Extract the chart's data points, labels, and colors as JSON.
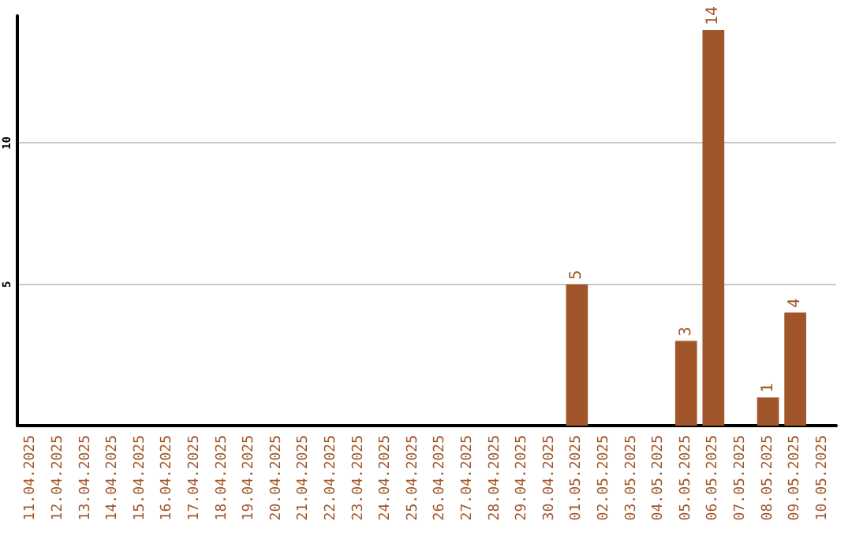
{
  "chart_data": {
    "type": "bar",
    "categories": [
      "11.04.2025",
      "12.04.2025",
      "13.04.2025",
      "14.04.2025",
      "15.04.2025",
      "16.04.2025",
      "17.04.2025",
      "18.04.2025",
      "19.04.2025",
      "20.04.2025",
      "21.04.2025",
      "22.04.2025",
      "23.04.2025",
      "24.04.2025",
      "25.04.2025",
      "26.04.2025",
      "27.04.2025",
      "28.04.2025",
      "29.04.2025",
      "30.04.2025",
      "01.05.2025",
      "02.05.2025",
      "03.05.2025",
      "04.05.2025",
      "05.05.2025",
      "06.05.2025",
      "07.05.2025",
      "08.05.2025",
      "09.05.2025",
      "10.05.2025"
    ],
    "values": [
      0,
      0,
      0,
      0,
      0,
      0,
      0,
      0,
      0,
      0,
      0,
      0,
      0,
      0,
      0,
      0,
      0,
      0,
      0,
      0,
      5,
      0,
      0,
      0,
      3,
      14,
      0,
      1,
      4,
      0
    ],
    "value_labels": [
      null,
      null,
      null,
      null,
      null,
      null,
      null,
      null,
      null,
      null,
      null,
      null,
      null,
      null,
      null,
      null,
      null,
      null,
      null,
      null,
      "5",
      null,
      null,
      null,
      "3",
      "14",
      null,
      "1",
      "4",
      null
    ],
    "color": "#a0562a",
    "ylim": [
      0,
      14.5
    ],
    "yticks": [
      5,
      10
    ],
    "grid": "y"
  }
}
